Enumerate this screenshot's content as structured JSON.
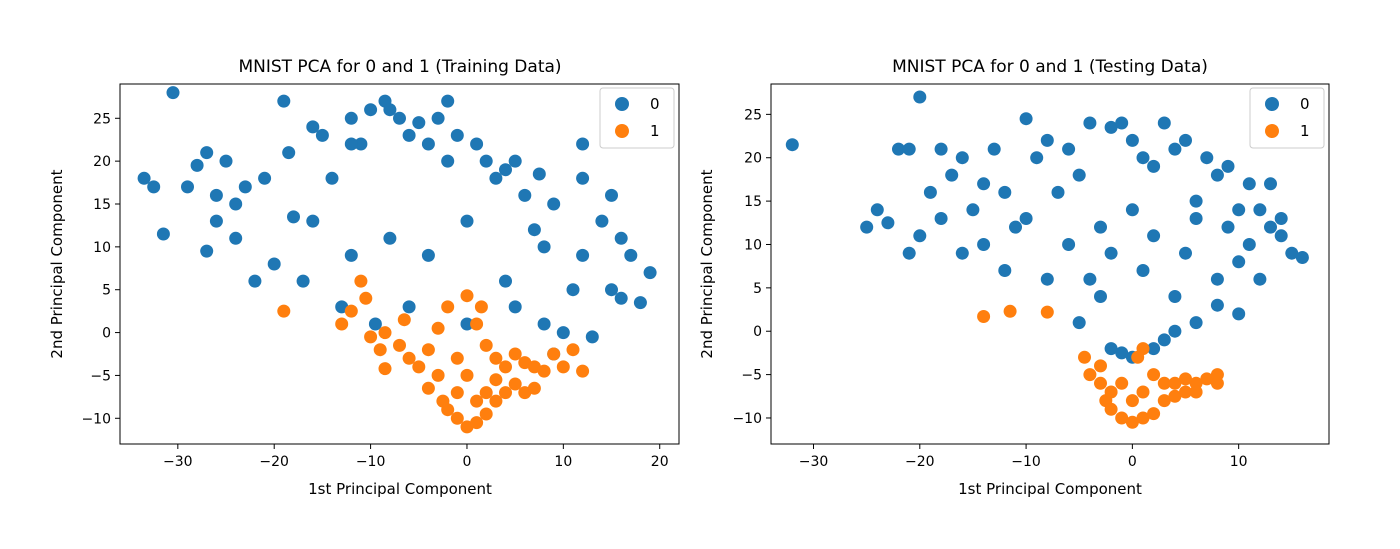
{
  "chart_data": [
    {
      "type": "scatter",
      "title": "MNIST PCA for 0 and 1 (Training Data)",
      "xlabel": "1st Principal Component",
      "ylabel": "2nd Principal Component",
      "xlim": [
        -36,
        22
      ],
      "ylim": [
        -13,
        29
      ],
      "xticks": [
        -30,
        -20,
        -10,
        0,
        10,
        20
      ],
      "yticks": [
        -10,
        -5,
        0,
        5,
        10,
        15,
        20,
        25
      ],
      "grid": false,
      "legend_position": "upper right",
      "series": [
        {
          "name": "0",
          "color": "#1f77b4",
          "points": [
            [
              -30.5,
              28
            ],
            [
              -33.5,
              18
            ],
            [
              -32.5,
              17
            ],
            [
              -31.5,
              11.5
            ],
            [
              -29,
              17
            ],
            [
              -28,
              19.5
            ],
            [
              -27,
              21
            ],
            [
              -27,
              9.5
            ],
            [
              -26,
              16
            ],
            [
              -26,
              13
            ],
            [
              -25,
              20
            ],
            [
              -24,
              15
            ],
            [
              -23,
              17
            ],
            [
              -22,
              6
            ],
            [
              -21,
              18
            ],
            [
              -19,
              27
            ],
            [
              -18.5,
              21
            ],
            [
              -18,
              13.5
            ],
            [
              -17,
              6
            ],
            [
              -16,
              24
            ],
            [
              -15,
              23
            ],
            [
              -14,
              18
            ],
            [
              -13,
              3
            ],
            [
              -12,
              25
            ],
            [
              -11,
              22
            ],
            [
              -10,
              26
            ],
            [
              -9.5,
              1
            ],
            [
              -8.5,
              27
            ],
            [
              -8,
              26
            ],
            [
              -7,
              25
            ],
            [
              -6,
              3
            ],
            [
              -5,
              24.5
            ],
            [
              -4,
              22
            ],
            [
              -3,
              25
            ],
            [
              -2,
              20
            ],
            [
              -1,
              23
            ],
            [
              0,
              1
            ],
            [
              1,
              22
            ],
            [
              2,
              20
            ],
            [
              3,
              18
            ],
            [
              4,
              19
            ],
            [
              5,
              3
            ],
            [
              6,
              16
            ],
            [
              7,
              12
            ],
            [
              8,
              1
            ],
            [
              9,
              15
            ],
            [
              10,
              0
            ],
            [
              11,
              5
            ],
            [
              12,
              22
            ],
            [
              13,
              -0.5
            ],
            [
              14,
              13
            ],
            [
              15,
              5
            ],
            [
              16,
              11
            ],
            [
              17,
              9
            ],
            [
              18,
              3.5
            ],
            [
              19,
              7
            ],
            [
              15,
              16
            ],
            [
              12,
              18
            ],
            [
              9,
              -2.5
            ],
            [
              7.5,
              18.5
            ],
            [
              5,
              20
            ],
            [
              -6,
              23
            ],
            [
              -2,
              27
            ],
            [
              -12,
              22
            ],
            [
              -20,
              8
            ],
            [
              -24,
              11
            ],
            [
              -16,
              13
            ],
            [
              -8,
              11
            ],
            [
              0,
              13
            ],
            [
              8,
              10
            ],
            [
              16,
              4
            ],
            [
              -12,
              9
            ],
            [
              -4,
              9
            ],
            [
              4,
              6
            ],
            [
              12,
              9
            ]
          ]
        },
        {
          "name": "1",
          "color": "#ff7f0e",
          "points": [
            [
              -19,
              2.5
            ],
            [
              -13,
              1
            ],
            [
              -12,
              2.5
            ],
            [
              -11,
              6
            ],
            [
              -10.5,
              4
            ],
            [
              -10,
              -0.5
            ],
            [
              -9,
              -2
            ],
            [
              -8.5,
              0
            ],
            [
              -7,
              -1.5
            ],
            [
              -6.5,
              1.5
            ],
            [
              -6,
              -3
            ],
            [
              -5,
              -4
            ],
            [
              -4,
              -2
            ],
            [
              -3,
              0.5
            ],
            [
              -2,
              3
            ],
            [
              -1,
              -3
            ],
            [
              0,
              4.3
            ],
            [
              1,
              1
            ],
            [
              1.5,
              3
            ],
            [
              2,
              -1.5
            ],
            [
              3,
              -3
            ],
            [
              4,
              -4
            ],
            [
              5,
              -2.5
            ],
            [
              6,
              -3.5
            ],
            [
              7,
              -4
            ],
            [
              8,
              -4.5
            ],
            [
              9,
              -2.5
            ],
            [
              10,
              -4
            ],
            [
              11,
              -2
            ],
            [
              12,
              -4.5
            ],
            [
              -8.5,
              -4.2
            ],
            [
              -4,
              -6.5
            ],
            [
              -2.5,
              -8
            ],
            [
              -1,
              -10
            ],
            [
              0,
              -11
            ],
            [
              1,
              -10.5
            ],
            [
              2,
              -9.5
            ],
            [
              3,
              -8
            ],
            [
              4,
              -7
            ],
            [
              5,
              -6
            ],
            [
              6,
              -7
            ],
            [
              7,
              -6.5
            ],
            [
              -2,
              -9
            ],
            [
              2,
              -7
            ],
            [
              0,
              -5
            ],
            [
              -3,
              -5
            ],
            [
              3,
              -5.5
            ],
            [
              1,
              -8
            ],
            [
              -1,
              -7
            ]
          ]
        }
      ]
    },
    {
      "type": "scatter",
      "title": "MNIST PCA for 0 and 1 (Testing Data)",
      "xlabel": "1st Principal Component",
      "ylabel": "2nd Principal Component",
      "xlim": [
        -34,
        18.5
      ],
      "ylim": [
        -13,
        28.5
      ],
      "xticks": [
        -30,
        -20,
        -10,
        0,
        10
      ],
      "yticks": [
        -10,
        -5,
        0,
        5,
        10,
        15,
        20,
        25
      ],
      "grid": false,
      "legend_position": "upper right",
      "series": [
        {
          "name": "0",
          "color": "#1f77b4",
          "points": [
            [
              -32,
              21.5
            ],
            [
              -20,
              27
            ],
            [
              -25,
              12
            ],
            [
              -24,
              14
            ],
            [
              -23,
              12.5
            ],
            [
              -22,
              21
            ],
            [
              -21,
              21
            ],
            [
              -21,
              9
            ],
            [
              -20,
              11
            ],
            [
              -19,
              16
            ],
            [
              -18,
              21
            ],
            [
              -17,
              18
            ],
            [
              -16,
              20
            ],
            [
              -15,
              14
            ],
            [
              -14,
              17
            ],
            [
              -13,
              21
            ],
            [
              -12,
              16
            ],
            [
              -11,
              12
            ],
            [
              -10,
              24.5
            ],
            [
              -9,
              20
            ],
            [
              -8,
              22
            ],
            [
              -7,
              16
            ],
            [
              -6,
              21
            ],
            [
              -5,
              18
            ],
            [
              -4,
              24
            ],
            [
              -3,
              12
            ],
            [
              -2,
              23.5
            ],
            [
              -1,
              24
            ],
            [
              0,
              22
            ],
            [
              1,
              20
            ],
            [
              2,
              19
            ],
            [
              3,
              24
            ],
            [
              4,
              21
            ],
            [
              5,
              22
            ],
            [
              6,
              15
            ],
            [
              7,
              20
            ],
            [
              8,
              18
            ],
            [
              9,
              19
            ],
            [
              10,
              14
            ],
            [
              11,
              17
            ],
            [
              12,
              14
            ],
            [
              13,
              12
            ],
            [
              14,
              11
            ],
            [
              15,
              9
            ],
            [
              16,
              8.5
            ],
            [
              13,
              17
            ],
            [
              12,
              6
            ],
            [
              10,
              2
            ],
            [
              8,
              3
            ],
            [
              6,
              1
            ],
            [
              4,
              0
            ],
            [
              3,
              -1
            ],
            [
              2,
              -2
            ],
            [
              0,
              -3
            ],
            [
              -1,
              -2.5
            ],
            [
              -2,
              -2
            ],
            [
              -5,
              1
            ],
            [
              -3,
              4
            ],
            [
              -8,
              6
            ],
            [
              -12,
              7
            ],
            [
              -16,
              9
            ],
            [
              -18,
              13
            ],
            [
              -10,
              13
            ],
            [
              -6,
              10
            ],
            [
              -2,
              9
            ],
            [
              2,
              11
            ],
            [
              5,
              9
            ],
            [
              8,
              6
            ],
            [
              11,
              10
            ],
            [
              14,
              13
            ],
            [
              0,
              14
            ],
            [
              -4,
              6
            ],
            [
              4,
              4
            ],
            [
              9,
              12
            ],
            [
              -14,
              10
            ],
            [
              1,
              7
            ],
            [
              6,
              13
            ],
            [
              10,
              8
            ]
          ]
        },
        {
          "name": "1",
          "color": "#ff7f0e",
          "points": [
            [
              -14,
              1.7
            ],
            [
              -11.5,
              2.3
            ],
            [
              -8,
              2.2
            ],
            [
              -4.5,
              -3
            ],
            [
              -4,
              -5
            ],
            [
              -3,
              -6
            ],
            [
              -2.5,
              -8
            ],
            [
              -2,
              -9
            ],
            [
              -1,
              -10
            ],
            [
              0,
              -10.5
            ],
            [
              1,
              -10
            ],
            [
              2,
              -9.5
            ],
            [
              3,
              -8
            ],
            [
              4,
              -7.5
            ],
            [
              5,
              -7
            ],
            [
              6,
              -6
            ],
            [
              7,
              -5.5
            ],
            [
              8,
              -5
            ],
            [
              1,
              -2
            ],
            [
              0.5,
              -3
            ],
            [
              -1,
              -6
            ],
            [
              1,
              -7
            ],
            [
              3,
              -6
            ],
            [
              5,
              -5.5
            ],
            [
              -3,
              -4
            ],
            [
              2,
              -5
            ],
            [
              4,
              -6
            ],
            [
              0,
              -8
            ],
            [
              -2,
              -7
            ],
            [
              6,
              -7
            ],
            [
              8,
              -6
            ]
          ]
        }
      ]
    }
  ],
  "legend": [
    "0",
    "1"
  ]
}
